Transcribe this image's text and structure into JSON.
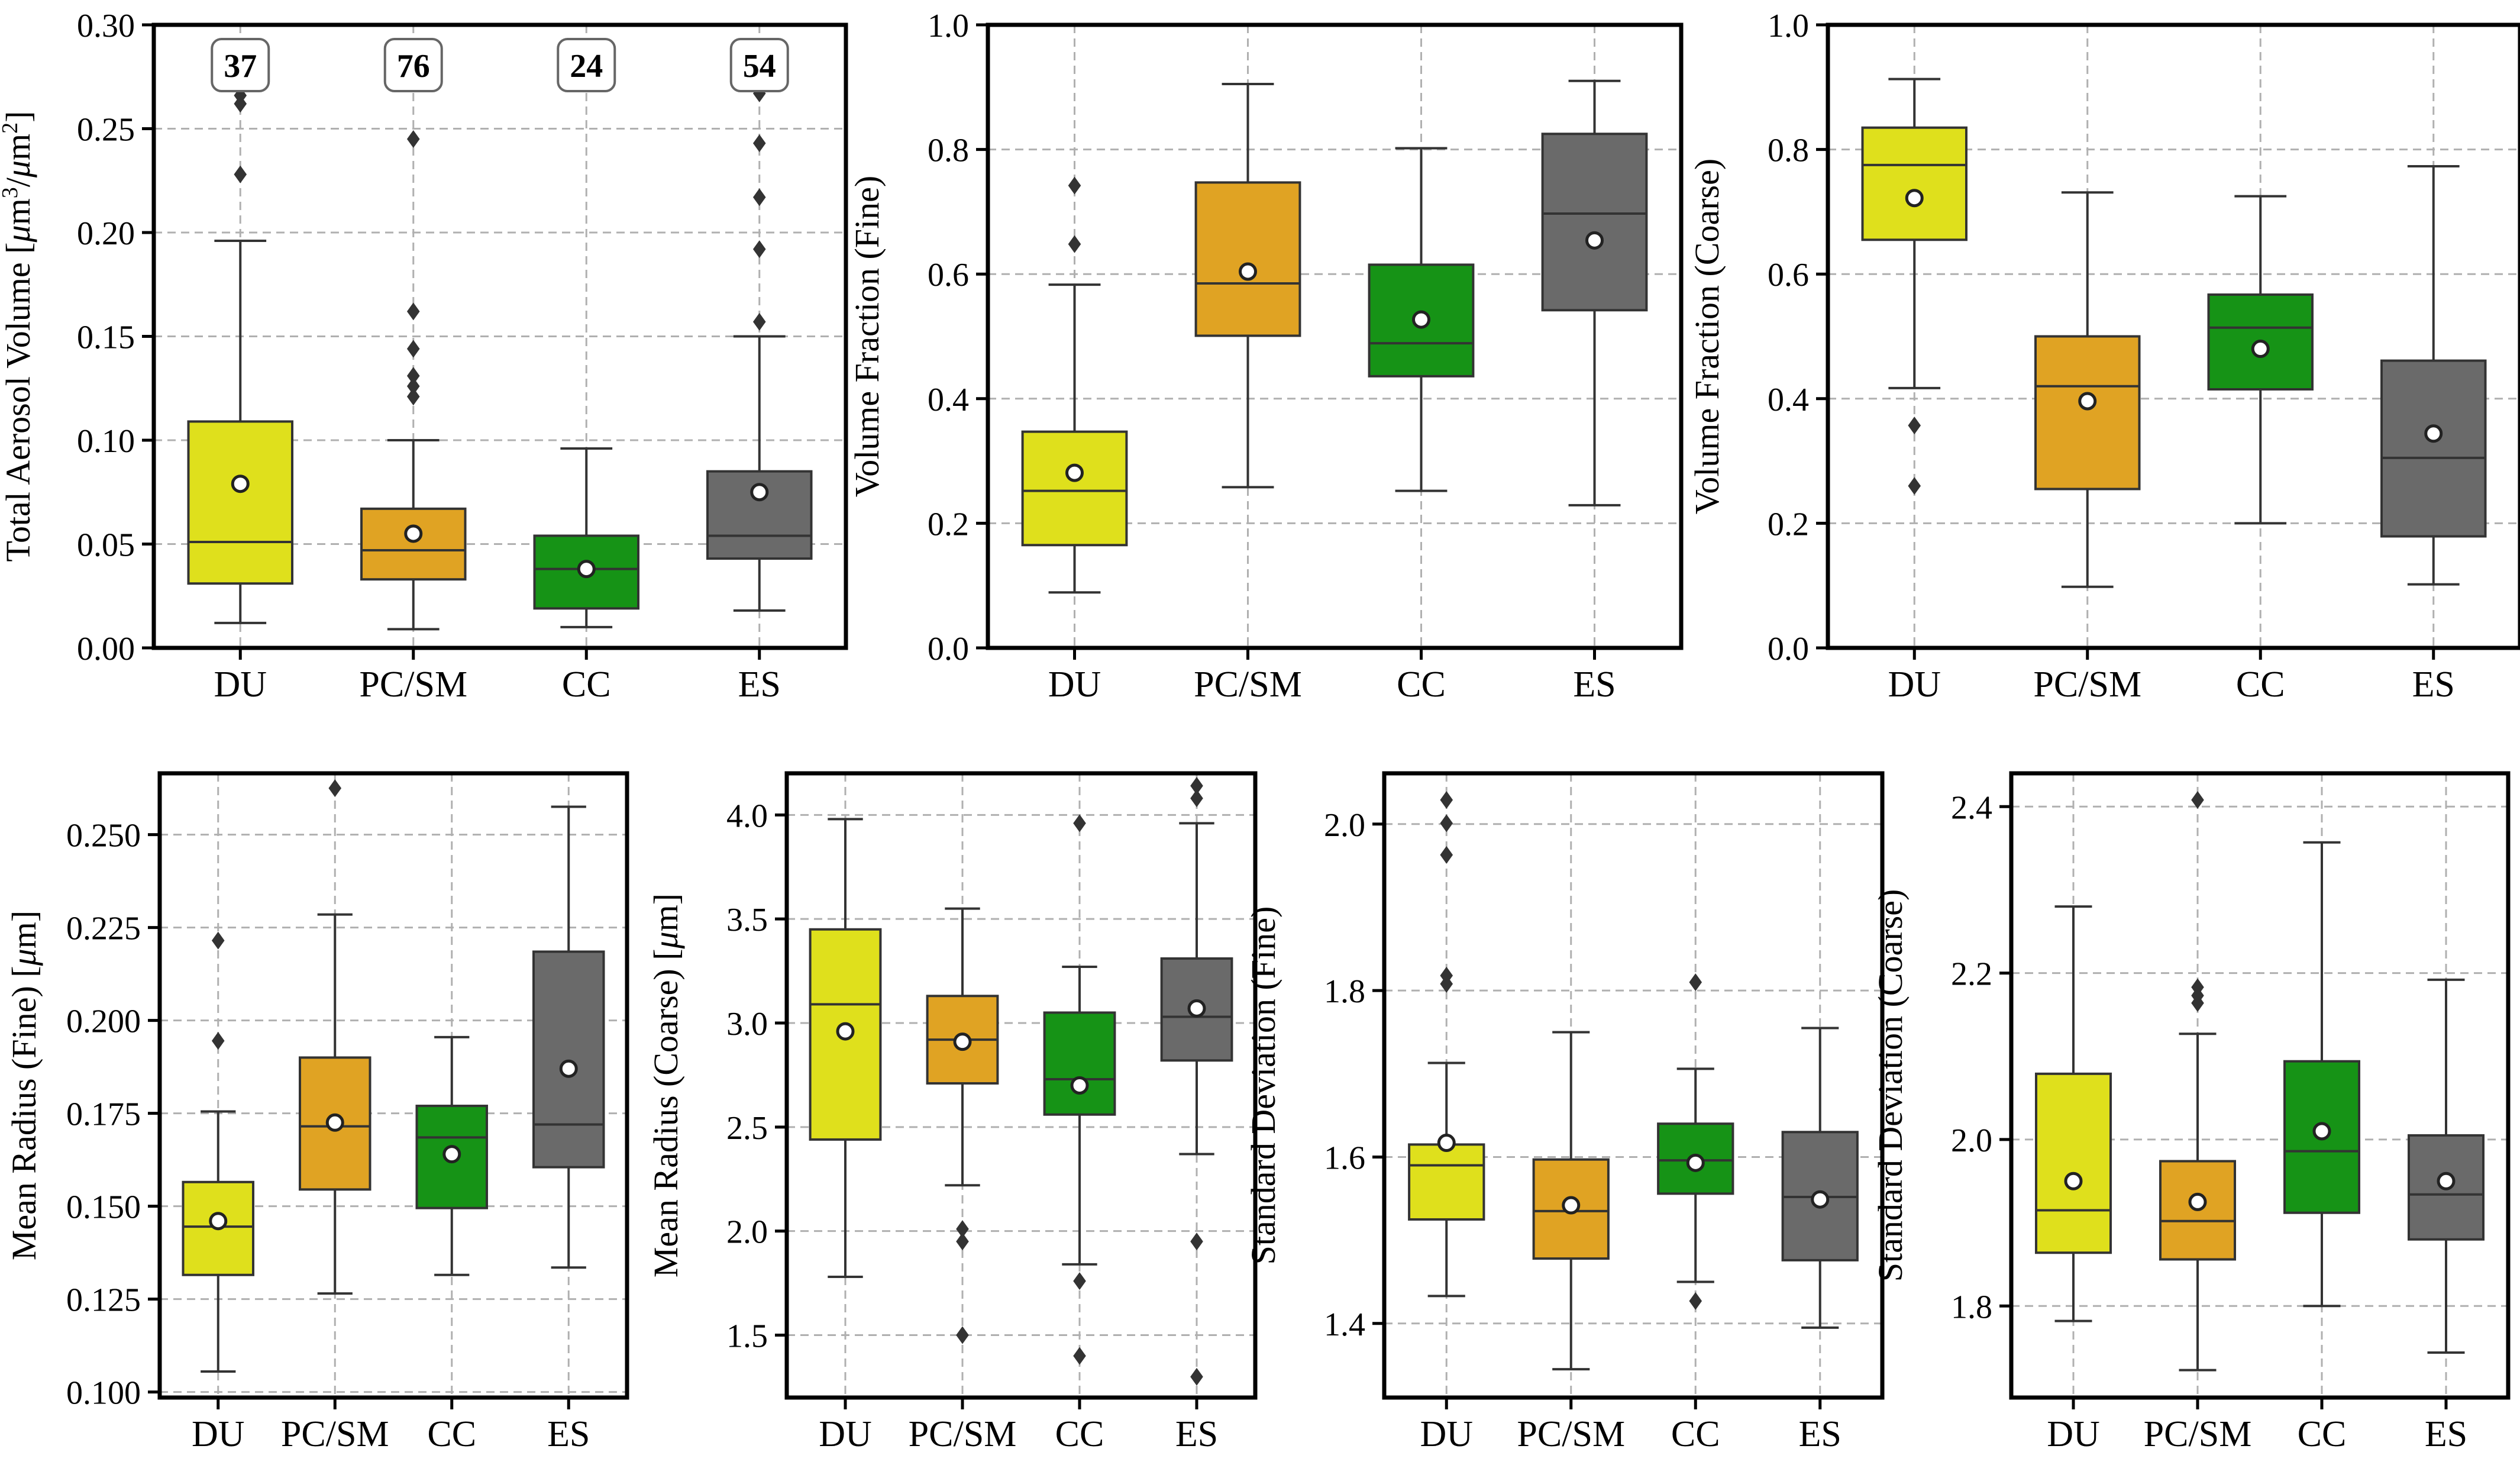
{
  "colors": {
    "DU": "#DFE01C",
    "PC/SM": "#E0A323",
    "CC": "#169316",
    "ES": "#6A6A6A"
  },
  "chart_data": [
    {
      "type": "box",
      "ylabel": "Total Aerosol Volume [",
      "ylabel_unit": {
        "mu1": "μ",
        "m1": "m",
        "sup1": "3",
        "slash": "/",
        "mu2": "μ",
        "m2": "m",
        "sup2": "2",
        "close": "]"
      },
      "ylim": [
        0,
        0.3
      ],
      "yticks": [
        0,
        0.05,
        0.1,
        0.15,
        0.2,
        0.25,
        0.3
      ],
      "ytick_labels": [
        "0.00",
        "0.05",
        "0.10",
        "0.15",
        "0.20",
        "0.25",
        "0.30"
      ],
      "categories": [
        "DU",
        "PC/SM",
        "CC",
        "ES"
      ],
      "counts": [
        "37",
        "76",
        "24",
        "54"
      ],
      "boxes": [
        {
          "q1": 0.031,
          "median": 0.051,
          "q3": 0.109,
          "whislo": 0.012,
          "whishi": 0.196,
          "mean": 0.079,
          "fliers": [
            0.228,
            0.262,
            0.266
          ]
        },
        {
          "q1": 0.033,
          "median": 0.047,
          "q3": 0.067,
          "whislo": 0.009,
          "whishi": 0.1,
          "mean": 0.055,
          "fliers": [
            0.121,
            0.126,
            0.131,
            0.144,
            0.162,
            0.245
          ]
        },
        {
          "q1": 0.019,
          "median": 0.038,
          "q3": 0.054,
          "whislo": 0.01,
          "whishi": 0.096,
          "mean": 0.038,
          "fliers": []
        },
        {
          "q1": 0.043,
          "median": 0.054,
          "q3": 0.085,
          "whislo": 0.018,
          "whishi": 0.15,
          "mean": 0.075,
          "fliers": [
            0.157,
            0.192,
            0.217,
            0.243,
            0.267
          ]
        }
      ]
    },
    {
      "type": "box",
      "ylabel": "Volume Fraction (Fine)",
      "ylim": [
        0,
        1
      ],
      "yticks": [
        0,
        0.2,
        0.4,
        0.6,
        0.8,
        1.0
      ],
      "ytick_labels": [
        "0.0",
        "0.2",
        "0.4",
        "0.6",
        "0.8",
        "1.0"
      ],
      "categories": [
        "DU",
        "PC/SM",
        "CC",
        "ES"
      ],
      "boxes": [
        {
          "q1": 0.165,
          "median": 0.252,
          "q3": 0.347,
          "whislo": 0.089,
          "whishi": 0.583,
          "mean": 0.281,
          "fliers": [
            0.648,
            0.742
          ]
        },
        {
          "q1": 0.501,
          "median": 0.585,
          "q3": 0.747,
          "whislo": 0.258,
          "whishi": 0.905,
          "mean": 0.604,
          "fliers": []
        },
        {
          "q1": 0.436,
          "median": 0.489,
          "q3": 0.615,
          "whislo": 0.252,
          "whishi": 0.802,
          "mean": 0.527,
          "fliers": []
        },
        {
          "q1": 0.542,
          "median": 0.697,
          "q3": 0.825,
          "whislo": 0.229,
          "whishi": 0.91,
          "mean": 0.654,
          "fliers": []
        }
      ]
    },
    {
      "type": "box",
      "ylabel": "Volume Fraction (Coarse)",
      "ylim": [
        0,
        1
      ],
      "yticks": [
        0,
        0.2,
        0.4,
        0.6,
        0.8,
        1.0
      ],
      "ytick_labels": [
        "0.0",
        "0.2",
        "0.4",
        "0.6",
        "0.8",
        "1.0"
      ],
      "categories": [
        "DU",
        "PC/SM",
        "CC",
        "ES"
      ],
      "boxes": [
        {
          "q1": 0.655,
          "median": 0.775,
          "q3": 0.835,
          "whislo": 0.417,
          "whishi": 0.913,
          "mean": 0.722,
          "fliers": [
            0.26,
            0.357
          ]
        },
        {
          "q1": 0.255,
          "median": 0.42,
          "q3": 0.5,
          "whislo": 0.098,
          "whishi": 0.731,
          "mean": 0.396,
          "fliers": []
        },
        {
          "q1": 0.415,
          "median": 0.514,
          "q3": 0.567,
          "whislo": 0.2,
          "whishi": 0.725,
          "mean": 0.48,
          "fliers": []
        },
        {
          "q1": 0.179,
          "median": 0.305,
          "q3": 0.461,
          "whislo": 0.102,
          "whishi": 0.773,
          "mean": 0.344,
          "fliers": []
        }
      ]
    },
    {
      "type": "box",
      "ylabel": "Mean Radius (Fine) [",
      "ylabel_unit": {
        "mu1": "μ",
        "m1": "m",
        "close": "]"
      },
      "ylim": [
        0.0985,
        0.2665
      ],
      "yticks": [
        0.1,
        0.125,
        0.15,
        0.175,
        0.2,
        0.225,
        0.25
      ],
      "ytick_labels": [
        "0.100",
        "0.125",
        "0.150",
        "0.175",
        "0.200",
        "0.225",
        "0.250"
      ],
      "categories": [
        "DU",
        "PC/SM",
        "CC",
        "ES"
      ],
      "boxes": [
        {
          "q1": 0.1315,
          "median": 0.1445,
          "q3": 0.1565,
          "whislo": 0.1055,
          "whishi": 0.1755,
          "mean": 0.146,
          "fliers": [
            0.1945,
            0.2215
          ]
        },
        {
          "q1": 0.1545,
          "median": 0.1715,
          "q3": 0.19,
          "whislo": 0.1265,
          "whishi": 0.2285,
          "mean": 0.1725,
          "fliers": [
            0.2625
          ]
        },
        {
          "q1": 0.1495,
          "median": 0.1685,
          "q3": 0.177,
          "whislo": 0.1315,
          "whishi": 0.1955,
          "mean": 0.164,
          "fliers": []
        },
        {
          "q1": 0.1605,
          "median": 0.172,
          "q3": 0.2185,
          "whislo": 0.1335,
          "whishi": 0.2575,
          "mean": 0.187,
          "fliers": []
        }
      ]
    },
    {
      "type": "box",
      "ylabel": "Mean Radius (Coarse) [",
      "ylabel_unit": {
        "mu1": "μ",
        "m1": "m",
        "close": "]"
      },
      "ylim": [
        1.2,
        4.2
      ],
      "yticks": [
        1.5,
        2.0,
        2.5,
        3.0,
        3.5,
        4.0
      ],
      "ytick_labels": [
        "1.5",
        "2.0",
        "2.5",
        "3.0",
        "3.5",
        "4.0"
      ],
      "categories": [
        "DU",
        "PC/SM",
        "CC",
        "ES"
      ],
      "boxes": [
        {
          "q1": 2.44,
          "median": 3.09,
          "q3": 3.45,
          "whislo": 1.78,
          "whishi": 3.98,
          "mean": 2.96,
          "fliers": []
        },
        {
          "q1": 2.71,
          "median": 2.92,
          "q3": 3.13,
          "whislo": 2.22,
          "whishi": 3.55,
          "mean": 2.91,
          "fliers": [
            1.5,
            1.95,
            2.01
          ]
        },
        {
          "q1": 2.56,
          "median": 2.73,
          "q3": 3.05,
          "whislo": 1.84,
          "whishi": 3.27,
          "mean": 2.7,
          "fliers": [
            1.4,
            1.76,
            3.96
          ]
        },
        {
          "q1": 2.82,
          "median": 3.03,
          "q3": 3.31,
          "whislo": 2.37,
          "whishi": 3.96,
          "mean": 3.07,
          "fliers": [
            1.3,
            1.95,
            4.08,
            4.14
          ]
        }
      ]
    },
    {
      "type": "box",
      "ylabel": "Standard Deviation (Fine)",
      "ylim": [
        1.311,
        2.061
      ],
      "yticks": [
        1.4,
        1.6,
        1.8,
        2.0
      ],
      "ytick_labels": [
        "1.4",
        "1.6",
        "1.8",
        "2.0"
      ],
      "categories": [
        "DU",
        "PC/SM",
        "CC",
        "ES"
      ],
      "boxes": [
        {
          "q1": 1.525,
          "median": 1.59,
          "q3": 1.615,
          "whislo": 1.433,
          "whishi": 1.713,
          "mean": 1.617,
          "fliers": [
            1.808,
            1.818,
            1.963,
            2.001,
            2.029
          ]
        },
        {
          "q1": 1.478,
          "median": 1.535,
          "q3": 1.597,
          "whislo": 1.345,
          "whishi": 1.75,
          "mean": 1.542,
          "fliers": []
        },
        {
          "q1": 1.556,
          "median": 1.596,
          "q3": 1.64,
          "whislo": 1.45,
          "whishi": 1.706,
          "mean": 1.593,
          "fliers": [
            1.427,
            1.81
          ]
        },
        {
          "q1": 1.476,
          "median": 1.552,
          "q3": 1.63,
          "whislo": 1.395,
          "whishi": 1.755,
          "mean": 1.549,
          "fliers": []
        }
      ]
    },
    {
      "type": "box",
      "ylabel": "Standard Deviation (Coarse)",
      "ylim": [
        1.69,
        2.44
      ],
      "yticks": [
        1.8,
        2.0,
        2.2,
        2.4
      ],
      "ytick_labels": [
        "1.8",
        "2.0",
        "2.2",
        "2.4"
      ],
      "categories": [
        "DU",
        "PC/SM",
        "CC",
        "ES"
      ],
      "boxes": [
        {
          "q1": 1.864,
          "median": 1.915,
          "q3": 2.079,
          "whislo": 1.782,
          "whishi": 2.28,
          "mean": 1.95,
          "fliers": []
        },
        {
          "q1": 1.856,
          "median": 1.902,
          "q3": 1.974,
          "whislo": 1.723,
          "whishi": 2.127,
          "mean": 1.925,
          "fliers": [
            2.164,
            2.173,
            2.183,
            2.408
          ]
        },
        {
          "q1": 1.912,
          "median": 1.986,
          "q3": 2.094,
          "whislo": 1.8,
          "whishi": 2.357,
          "mean": 2.01,
          "fliers": []
        },
        {
          "q1": 1.88,
          "median": 1.934,
          "q3": 2.005,
          "whislo": 1.744,
          "whishi": 2.192,
          "mean": 1.95,
          "fliers": []
        }
      ]
    }
  ]
}
